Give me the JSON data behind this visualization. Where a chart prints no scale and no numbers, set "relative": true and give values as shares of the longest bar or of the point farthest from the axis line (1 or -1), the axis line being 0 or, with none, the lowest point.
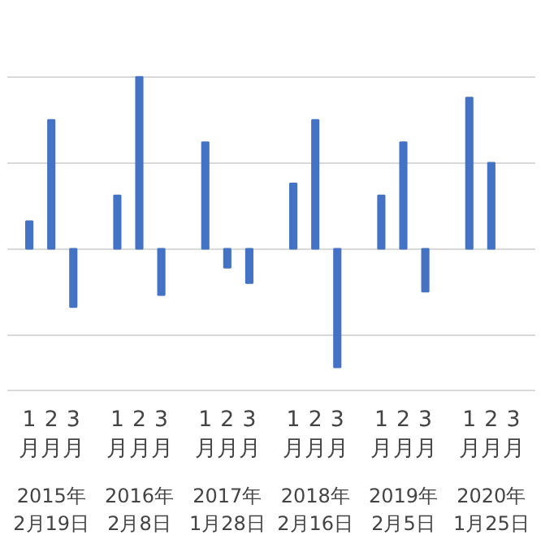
{
  "chart_data": {
    "type": "bar",
    "relative": true,
    "color": "#4472c4",
    "grid": "y",
    "categories": [
      "1月",
      "2月",
      "3月",
      "1月",
      "2月",
      "3月",
      "1月",
      "2月",
      "3月",
      "1月",
      "2月",
      "3月",
      "1月",
      "2月",
      "3月",
      "1月",
      "2月",
      "3月"
    ],
    "values": [
      0.16,
      0.75,
      -0.34,
      0.31,
      1.0,
      -0.27,
      0.62,
      -0.11,
      -0.2,
      0.38,
      0.75,
      -0.69,
      0.31,
      0.62,
      -0.25,
      0.88,
      0.5,
      null
    ],
    "annotations": [
      "2015年 2月19日",
      "2016年 2月8日",
      "2017年 1月28日",
      "2018年 2月16日",
      "2019年 2月5日",
      "2020年 1月25日"
    ]
  }
}
